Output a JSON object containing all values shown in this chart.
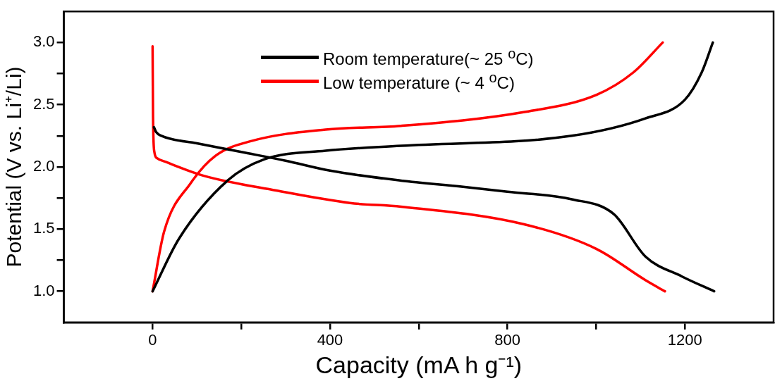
{
  "chart_data": {
    "type": "line",
    "xlabel": "Capacity (mA h g⁻¹)",
    "ylabel": "Potential (V vs. Li⁺/Li)",
    "xlim": [
      -200,
      1400
    ],
    "ylim": [
      0.75,
      3.25
    ],
    "xticks": [
      0,
      {
        "value": 200,
        "label": null
      },
      400,
      {
        "value": 600,
        "label": null
      },
      800,
      {
        "value": 1000,
        "label": null
      },
      1200
    ],
    "yticks": [
      {
        "value": 1,
        "label": "1.0"
      },
      {
        "value": 1.25,
        "label": null
      },
      1.5,
      {
        "value": 1.75,
        "label": null
      },
      {
        "value": 2,
        "label": "2.0"
      },
      {
        "value": 2.25,
        "label": null
      },
      2.5,
      {
        "value": 2.75,
        "label": null
      },
      {
        "value": 3,
        "label": "3.0"
      }
    ],
    "grid": false,
    "legend": "top",
    "marker": "none",
    "line_style": "solid",
    "series": [
      {
        "name": "Room temperature(~ 25 $^{o}$C)",
        "color": "#000000",
        "x": [
          3,
          8,
          20,
          100,
          200,
          300,
          400,
          560,
          700,
          800,
          945,
          1040,
          1111,
          1193,
          1266
        ],
        "values": [
          2.32,
          2.28,
          2.25,
          2.19,
          2.12,
          2.05,
          1.97,
          1.89,
          1.84,
          1.8,
          1.74,
          1.62,
          1.28,
          1.12,
          1.0
        ]
      },
      {
        "color": "#000000",
        "x": [
          0,
          59,
          169,
          251,
          390,
          560,
          945,
          1111,
          1200,
          1238,
          1263
        ],
        "values": [
          1.0,
          1.42,
          1.89,
          2.06,
          2.13,
          2.17,
          2.25,
          2.39,
          2.54,
          2.76,
          3.0
        ]
      },
      {
        "name": "Low temperature (~ 4 $^{o}$C)",
        "color": "#ff0000",
        "x": [
          0,
          1,
          4,
          10,
          30,
          114,
          279,
          445,
          560,
          836,
          1001,
          1111,
          1155
        ],
        "values": [
          2.97,
          2.4,
          2.12,
          2.07,
          2.04,
          1.93,
          1.81,
          1.71,
          1.68,
          1.54,
          1.34,
          1.09,
          1.0
        ]
      },
      {
        "color": "#ff0000",
        "x": [
          0,
          26,
          86,
          142,
          225,
          390,
          560,
          836,
          1001,
          1084,
          1150
        ],
        "values": [
          1.0,
          1.48,
          1.87,
          2.09,
          2.21,
          2.3,
          2.33,
          2.44,
          2.58,
          2.76,
          3.0
        ]
      }
    ]
  }
}
